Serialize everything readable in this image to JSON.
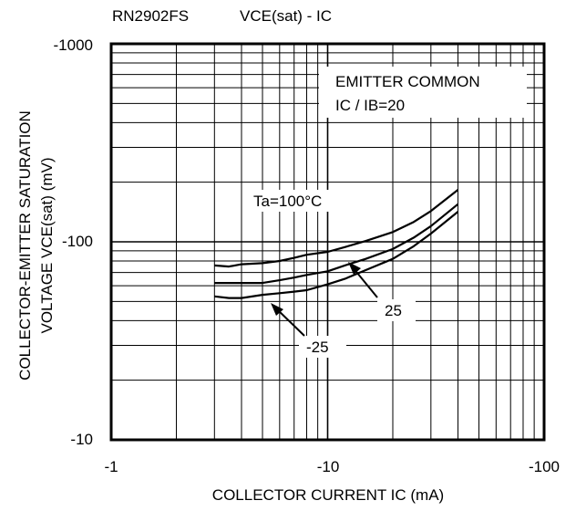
{
  "header": {
    "part_number": "RN2902FS",
    "chart_title": "VCE(sat) - IC"
  },
  "chart_data": {
    "type": "line",
    "title": "VCE(sat) - IC",
    "xlabel": "COLLECTOR CURRENT IC (mA)",
    "ylabel_line1": "COLLECTOR-EMITTER SATURATION",
    "ylabel_line2": "VOLTAGE   VCE(sat) (mV)",
    "x_scale": "log",
    "y_scale": "log",
    "xlim": [
      -1,
      -100
    ],
    "ylim": [
      -10,
      -1000
    ],
    "x_ticks": [
      "-1",
      "-10",
      "-100"
    ],
    "y_ticks": [
      "-1000",
      "-100",
      "-10"
    ],
    "grid": true,
    "annotations": {
      "condition_line1": "EMITTER COMMON",
      "condition_line2": "IC / IB=20",
      "label_100": "Ta=100°C",
      "label_25": "25",
      "label_m25": "-25"
    },
    "series": [
      {
        "name": "Ta=100°C",
        "x": [
          -3,
          -3.5,
          -4,
          -5,
          -6,
          -7,
          -8,
          -10,
          -12,
          -15,
          -20,
          -25,
          -30,
          -40
        ],
        "y": [
          -76,
          -75,
          -77,
          -78,
          -80,
          -83,
          -86,
          -89,
          -94,
          -101,
          -112,
          -126,
          -143,
          -183
        ]
      },
      {
        "name": "25",
        "x": [
          -3,
          -4,
          -5,
          -6,
          -7,
          -8,
          -10,
          -12,
          -15,
          -20,
          -25,
          -30,
          -40
        ],
        "y": [
          -62,
          -62,
          -62,
          -64,
          -66,
          -68,
          -71,
          -76,
          -82,
          -92,
          -105,
          -120,
          -155
        ]
      },
      {
        "name": "-25",
        "x": [
          -3,
          -3.5,
          -4,
          -5,
          -6,
          -7,
          -8,
          -10,
          -12,
          -15,
          -20,
          -25,
          -30,
          -40
        ],
        "y": [
          -53,
          -52,
          -52,
          -54,
          -55,
          -56,
          -57,
          -61,
          -65,
          -72,
          -82,
          -95,
          -110,
          -142
        ]
      }
    ]
  }
}
